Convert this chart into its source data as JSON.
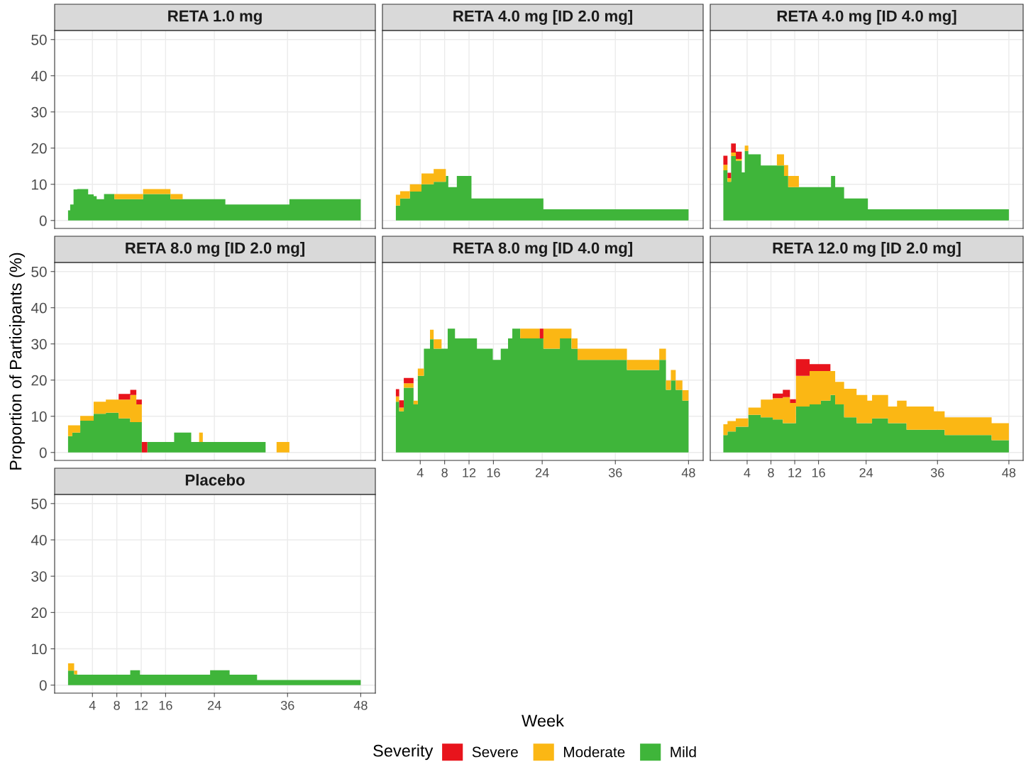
{
  "chart_data": [
    {
      "type": "area",
      "stacked": true,
      "title": "RETA 1.0 mg",
      "legend": "bottom",
      "legend_title": "Severity",
      "x": [
        0,
        0.35,
        0.9,
        1.5,
        3.3,
        4.2,
        4.7,
        5.9,
        7.6,
        12.3,
        16.8,
        18.8,
        25.8,
        36.3,
        48
      ],
      "xlim": [
        -2.2,
        50.4
      ],
      "ylim": [
        -2.2,
        52.5
      ],
      "xticks": [
        4,
        8,
        12,
        16,
        24,
        36,
        48
      ],
      "yticks": [
        0,
        10,
        20,
        30,
        40,
        50
      ],
      "grid": true,
      "tick_labels": "y",
      "series": [
        {
          "name": "Mild",
          "color": "#3fb53a",
          "values": [
            2.8,
            4.4,
            8.6,
            8.7,
            7.2,
            6.7,
            5.9,
            7.3,
            5.9,
            7.3,
            5.9,
            5.9,
            4.4,
            5.9,
            5.9
          ]
        },
        {
          "name": "Moderate",
          "color": "#fbb714",
          "values": [
            0,
            0,
            0,
            0,
            0,
            0,
            0,
            0,
            1.4,
            1.4,
            1.4,
            0,
            0,
            0,
            0
          ]
        },
        {
          "name": "Severe",
          "color": "#e8141c",
          "values": [
            null,
            null,
            null,
            null,
            null,
            null,
            null,
            null,
            null,
            null,
            null,
            null,
            null,
            null,
            null
          ]
        }
      ]
    },
    {
      "type": "area",
      "stacked": true,
      "title": "RETA 4.0 mg [ID 2.0 mg]",
      "x": [
        0,
        0.7,
        2.3,
        4.2,
        6.2,
        8.2,
        8.6,
        10.0,
        12.4,
        24.2,
        48
      ],
      "xlim": [
        -2.2,
        50.4
      ],
      "ylim": [
        -2.2,
        52.5
      ],
      "xticks": [
        4,
        8,
        12,
        16,
        24,
        36,
        48
      ],
      "yticks": [
        0,
        10,
        20,
        30,
        40,
        50
      ],
      "grid": true,
      "tick_labels": false,
      "series": [
        {
          "color": "#3fb53a",
          "values": [
            4.1,
            6.1,
            8.0,
            10.0,
            10.7,
            12.3,
            9.2,
            12.3,
            6.1,
            3.1,
            3.1
          ]
        },
        {
          "color": "#fbb714",
          "values": [
            3,
            2,
            2,
            3,
            3.5,
            0,
            0,
            0,
            0,
            0,
            0
          ]
        }
      ]
    },
    {
      "type": "area",
      "stacked": true,
      "title": "RETA 4.0 mg [ID 4.0 mg]",
      "x": [
        0,
        0.7,
        1.3,
        2.1,
        3.1,
        3.6,
        4.2,
        6.3,
        9.0,
        10.2,
        10.9,
        12.7,
        18.1,
        18.8,
        20.3,
        24.3,
        48
      ],
      "xlim": [
        -2.2,
        50.4
      ],
      "ylim": [
        -2.2,
        52.5
      ],
      "xticks": [
        4,
        8,
        12,
        16,
        24,
        36,
        48
      ],
      "yticks": [
        0,
        10,
        20,
        30,
        40,
        50
      ],
      "grid": true,
      "tick_labels": false,
      "series": [
        {
          "color": "#3fb53a",
          "values": [
            13.9,
            10.7,
            17.8,
            16.5,
            13.3,
            19.2,
            18.3,
            15.2,
            15.2,
            12.3,
            9.2,
            9.2,
            12.3,
            9.2,
            6.1,
            3.1,
            3.1
          ]
        },
        {
          "color": "#fbb714",
          "values": [
            1.5,
            1,
            1,
            0.5,
            0,
            1.5,
            0,
            0,
            3.1,
            3.0,
            3.1,
            0,
            0,
            0,
            0,
            0,
            0
          ]
        },
        {
          "color": "#e8141c",
          "values": [
            2.5,
            1.5,
            2.5,
            2,
            0,
            0,
            0,
            0,
            0,
            0,
            0,
            0,
            0,
            0,
            0,
            0,
            0
          ]
        }
      ]
    },
    {
      "type": "area",
      "stacked": true,
      "title": "RETA 8.0 mg [ID 2.0 mg]",
      "ylabel": "Proportion of Participants (%)",
      "x": [
        0,
        0.7,
        2.0,
        4.2,
        6.2,
        8.3,
        10.2,
        11.2,
        12.1,
        13.0,
        17.4,
        20.2,
        21.5,
        22.1,
        32.4,
        34.2,
        36.3
      ],
      "xlim": [
        -2.2,
        50.4
      ],
      "ylim": [
        -2.2,
        52.5
      ],
      "xticks": [
        4,
        8,
        12,
        16,
        24,
        36,
        48
      ],
      "yticks": [
        0,
        10,
        20,
        30,
        40,
        50
      ],
      "grid": true,
      "tick_labels": "y",
      "series": [
        {
          "color": "#3fb53a",
          "values": [
            4.5,
            5.5,
            8.8,
            10.7,
            11.0,
            9.4,
            8.4,
            8.4,
            0,
            2.9,
            5.5,
            2.9,
            2.9,
            2.9,
            0,
            0,
            0
          ]
        },
        {
          "color": "#fbb714",
          "values": [
            3,
            2.0,
            1.3,
            3.3,
            3.6,
            5.2,
            7.5,
            4.9,
            0,
            0,
            0,
            0,
            2.6,
            0,
            0,
            2.9,
            0
          ]
        },
        {
          "color": "#e8141c",
          "values": [
            0,
            0,
            0,
            0,
            0,
            1.6,
            1.4,
            1.3,
            2.9,
            0,
            0,
            0,
            0,
            0,
            0,
            0,
            0
          ]
        }
      ]
    },
    {
      "type": "area",
      "stacked": true,
      "title": "RETA 8.0 mg [ID 4.0 mg]",
      "xlabel": "Week",
      "x": [
        0,
        0.55,
        1.3,
        2.9,
        3.6,
        4.6,
        5.6,
        6.2,
        7.5,
        8.5,
        9.7,
        13.3,
        15.9,
        17.2,
        18.4,
        19.1,
        20.4,
        23.6,
        24.2,
        26.9,
        28.8,
        29.8,
        37.9,
        43.2,
        44.3,
        45.1,
        45.9,
        47.0,
        48
      ],
      "xlim": [
        -2.2,
        50.4
      ],
      "ylim": [
        -2.2,
        52.5
      ],
      "xticks": [
        4,
        8,
        12,
        16,
        24,
        36,
        48
      ],
      "yticks": [
        0,
        10,
        20,
        30,
        40,
        50
      ],
      "grid": true,
      "tick_labels": "x",
      "series": [
        {
          "color": "#3fb53a",
          "values": [
            14.0,
            11.4,
            17.9,
            13.3,
            21.2,
            28.7,
            31.3,
            28.7,
            28.7,
            34.2,
            31.5,
            28.7,
            25.6,
            28.7,
            31.5,
            34.2,
            31.5,
            31.5,
            28.7,
            31.5,
            28.7,
            25.6,
            22.8,
            25.6,
            17.3,
            19.9,
            17.3,
            14.3,
            14.3
          ]
        },
        {
          "color": "#fbb714",
          "values": [
            1.5,
            1,
            1.2,
            1,
            2,
            0,
            2.6,
            2.6,
            0,
            0,
            0,
            0,
            0,
            0,
            0,
            0,
            2.7,
            0,
            5.5,
            2.7,
            2.8,
            3.1,
            2.8,
            3.1,
            2.6,
            2.9,
            2.6,
            2.9,
            2.9
          ]
        },
        {
          "color": "#e8141c",
          "values": [
            2,
            2,
            1.5,
            0,
            0,
            0,
            0,
            0,
            0,
            0,
            0,
            0,
            0,
            0,
            0,
            0,
            0,
            2.7,
            0,
            0,
            0,
            0,
            0,
            0,
            0,
            0,
            0,
            0,
            0
          ]
        }
      ]
    },
    {
      "type": "area",
      "stacked": true,
      "title": "RETA 12.0 mg [ID 2.0 mg]",
      "x": [
        0,
        0.7,
        2.1,
        4.2,
        6.3,
        8.3,
        10.0,
        11.2,
        12.2,
        14.5,
        16.4,
        18.0,
        18.8,
        20.3,
        22.4,
        24.2,
        25.0,
        27.7,
        29.2,
        30.8,
        35.4,
        37.2,
        45.1,
        48
      ],
      "xlim": [
        -2.2,
        50.4
      ],
      "ylim": [
        -2.2,
        52.5
      ],
      "xticks": [
        4,
        8,
        12,
        16,
        24,
        36,
        48
      ],
      "yticks": [
        0,
        10,
        20,
        30,
        40,
        50
      ],
      "grid": true,
      "tick_labels": "x",
      "series": [
        {
          "color": "#3fb53a",
          "values": [
            4.8,
            5.8,
            7.1,
            10.4,
            9.7,
            9.1,
            8.1,
            8.1,
            12.7,
            13.3,
            14.3,
            15.9,
            13.3,
            9.7,
            8.1,
            8.1,
            9.4,
            8.1,
            8.1,
            6.3,
            6.3,
            4.8,
            3.4,
            3.4
          ]
        },
        {
          "color": "#fbb714",
          "values": [
            3,
            2.9,
            2.3,
            2.0,
            4.9,
            5.9,
            7.2,
            5.6,
            8.5,
            9.2,
            8.2,
            6.6,
            6.2,
            7.9,
            7.8,
            6.2,
            6.5,
            4.6,
            6.2,
            6.4,
            5.1,
            4.9,
            4.7,
            4.7
          ]
        },
        {
          "color": "#e8141c",
          "values": [
            0,
            0,
            0,
            0,
            0,
            1.3,
            2.0,
            1.0,
            4.6,
            1.9,
            1.9,
            0,
            0,
            0,
            0,
            0,
            0,
            0,
            0,
            0,
            0,
            0,
            0,
            0
          ]
        }
      ]
    },
    {
      "type": "area",
      "stacked": true,
      "title": "Placebo",
      "x": [
        0,
        1.0,
        1.5,
        10.2,
        11.8,
        23.3,
        26.5,
        31,
        48
      ],
      "xlim": [
        -2.2,
        50.4
      ],
      "ylim": [
        -2.2,
        52.5
      ],
      "xticks": [
        4,
        8,
        12,
        16,
        24,
        36,
        48
      ],
      "yticks": [
        0,
        10,
        20,
        30,
        40,
        50
      ],
      "grid": true,
      "series": [
        {
          "color": "#3fb53a",
          "values": [
            4,
            3,
            2.9,
            4.1,
            2.9,
            4.1,
            2.9,
            1.4,
            1.4
          ]
        },
        {
          "color": "#fbb714",
          "values": [
            2,
            1,
            0,
            0,
            0,
            0,
            0,
            0,
            0
          ]
        }
      ]
    }
  ]
}
